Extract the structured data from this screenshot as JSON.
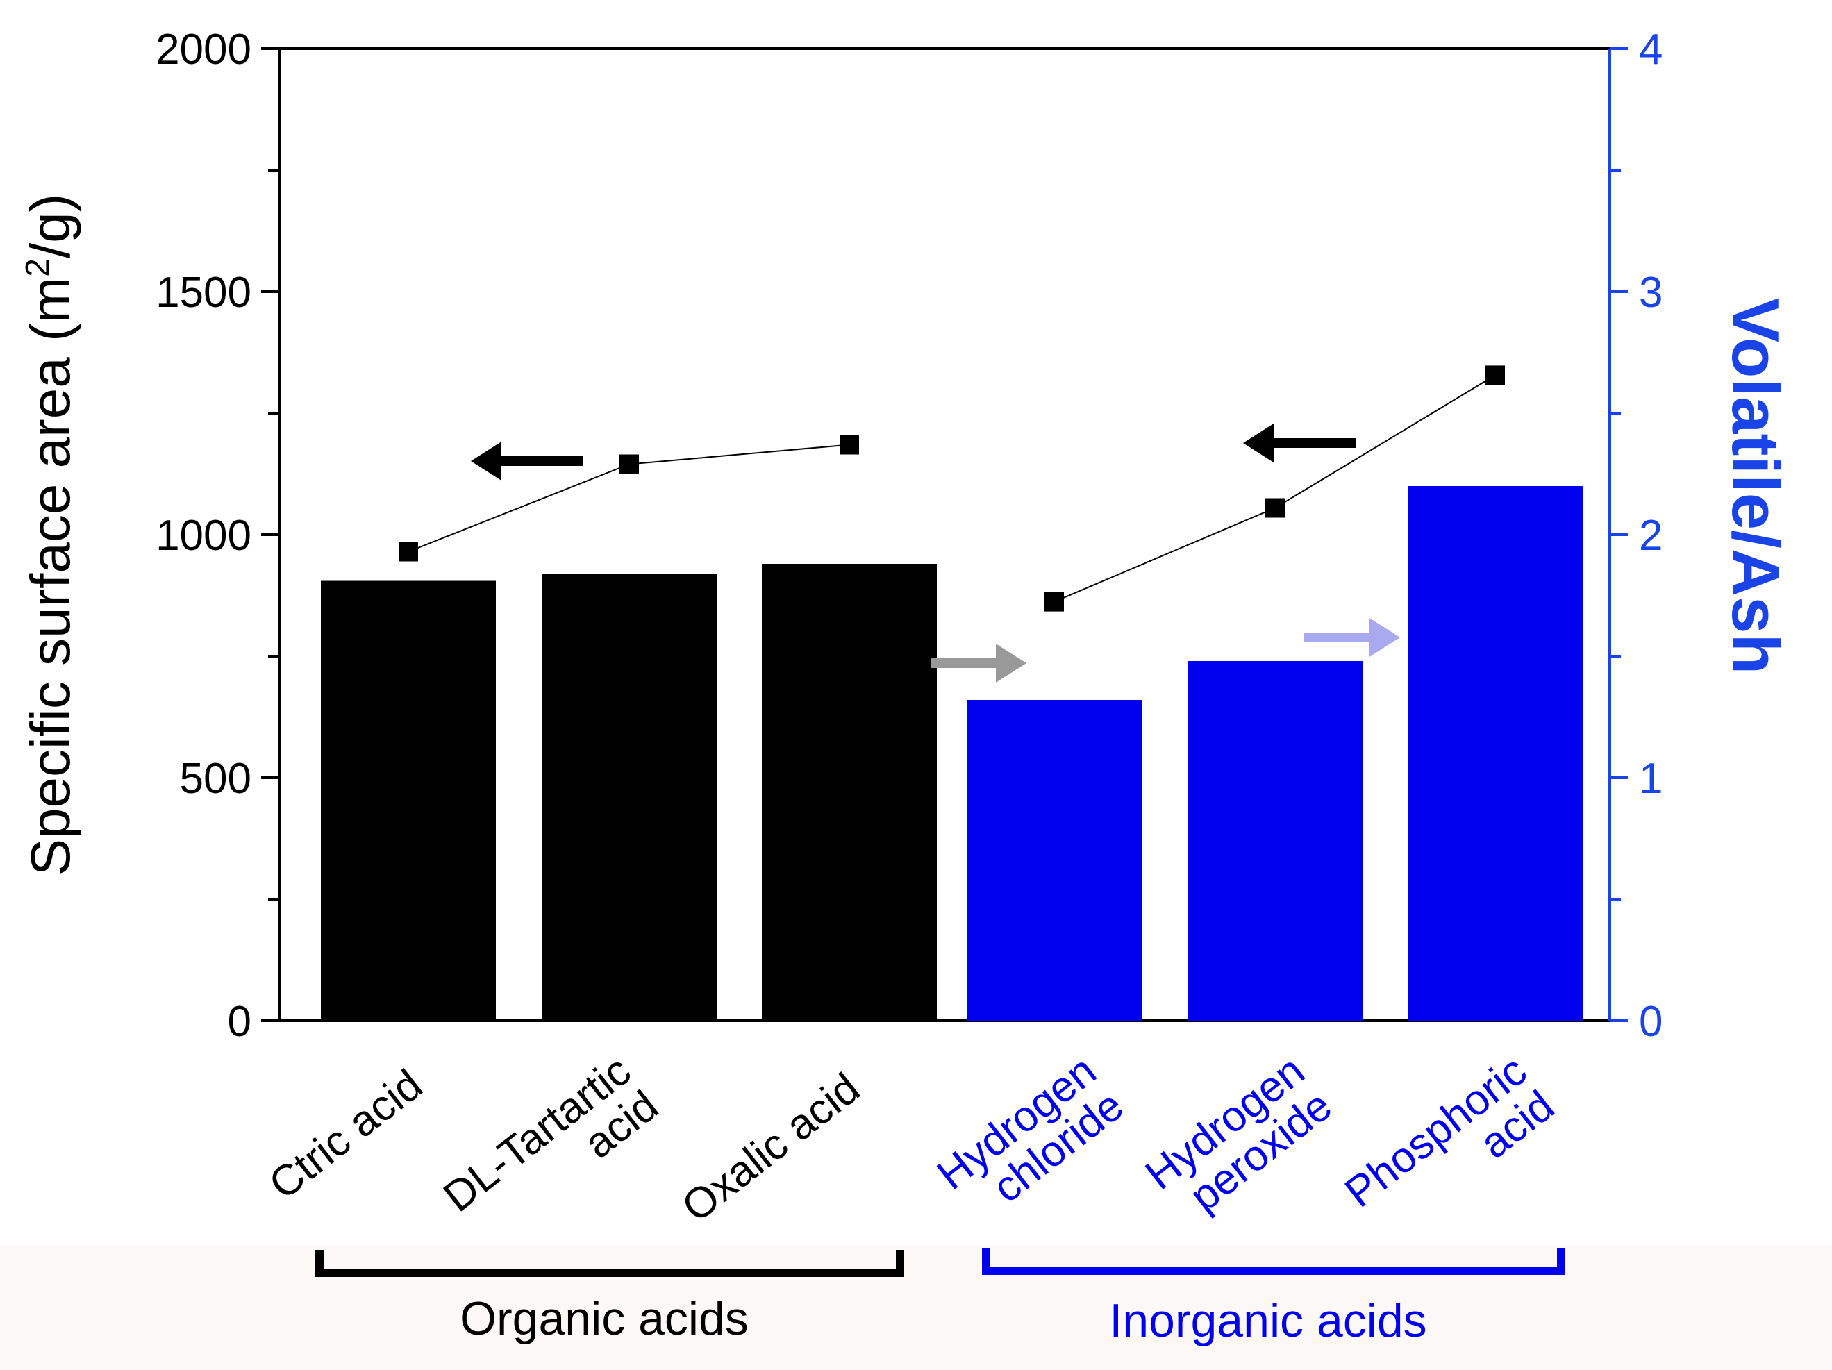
{
  "chart_data": {
    "type": "bar",
    "title": "",
    "categories": [
      {
        "lines": [
          "Ctric acid"
        ],
        "group": "organic"
      },
      {
        "lines": [
          "DL-Tartartic",
          "acid"
        ],
        "group": "organic"
      },
      {
        "lines": [
          "Oxalic acid"
        ],
        "group": "organic"
      },
      {
        "lines": [
          "Hydrogen",
          "chloride"
        ],
        "group": "inorganic"
      },
      {
        "lines": [
          "Hydrogen",
          "peroxide"
        ],
        "group": "inorganic"
      },
      {
        "lines": [
          "Phosphoric",
          "acid"
        ],
        "group": "inorganic"
      }
    ],
    "series": [
      {
        "name": "Volatile/Ash",
        "kind": "bar",
        "axis": "right",
        "values": [
          1.81,
          1.84,
          1.88,
          1.32,
          1.48,
          2.2
        ]
      },
      {
        "name": "Specific surface area",
        "kind": "line",
        "axis": "left",
        "values": [
          965,
          1145,
          1185,
          862,
          1055,
          1328
        ]
      }
    ],
    "ylabel_left": "Specific surface area (m",
    "ylabel_left_sup": "2",
    "ylabel_left_end": "/g)",
    "ylabel_right": "Volatile/Ash",
    "ylim_left": [
      0,
      2000
    ],
    "ylim_right": [
      0,
      4
    ],
    "yticks_left": [
      "0",
      "500",
      "1000",
      "1500",
      "2000"
    ],
    "yticks_right": [
      "0",
      "1",
      "2",
      "3",
      "4"
    ],
    "groups": {
      "organic": {
        "label": "Organic acids",
        "color": "#000000"
      },
      "inorganic": {
        "label": "Inorganic acids",
        "color": "#0000ee"
      }
    },
    "colors": {
      "right_axis": "#1a44e8",
      "arrow_organic": "#000000",
      "arrow_inorganic_left": "#000000",
      "arrow_right_1": "#999999",
      "arrow_right_2": "#a9a9f0",
      "marker": "#000000",
      "line": "#000000"
    }
  }
}
